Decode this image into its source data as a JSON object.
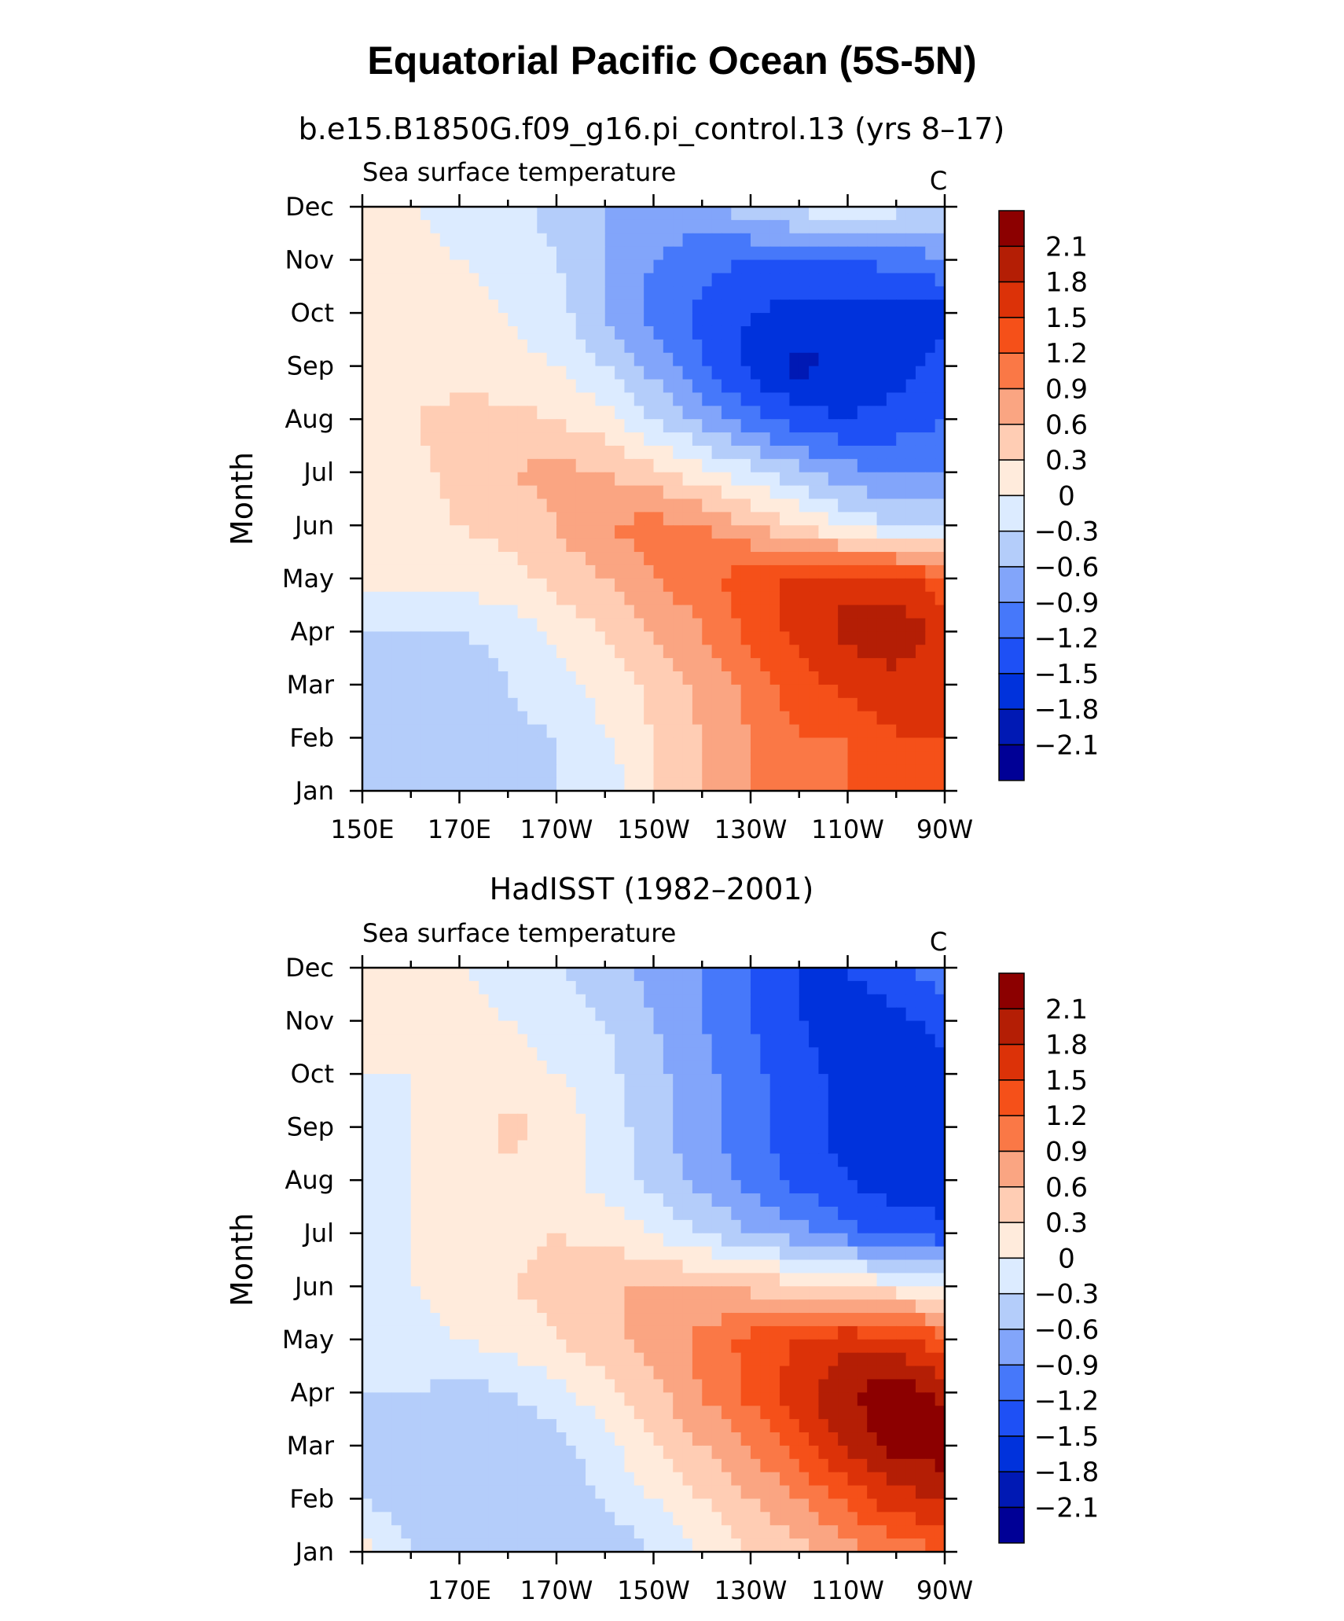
{
  "main_title": "Equatorial Pacific Ocean (5S-5N)",
  "chart_data": [
    {
      "type": "heatmap",
      "title": "b.e15.B1850G.f09_g16.pi_control.13 (yrs 8–17)",
      "variable": "Sea surface temperature",
      "units": "C",
      "ylabel": "Month",
      "xlim": [
        150,
        270
      ],
      "x_tick_values": [
        150,
        170,
        190,
        210,
        230,
        250,
        270
      ],
      "x_tick_labels": [
        "150E",
        "170E",
        "170W",
        "150W",
        "130W",
        "110W",
        "90W"
      ],
      "y_tick_labels": [
        "Jan",
        "Feb",
        "Mar",
        "Apr",
        "May",
        "Jun",
        "Jul",
        "Aug",
        "Sep",
        "Oct",
        "Nov",
        "Dec"
      ],
      "x": [
        150,
        160,
        170,
        180,
        190,
        200,
        210,
        220,
        230,
        240,
        250,
        260,
        270
      ],
      "values": [
        [
          -0.3,
          -0.6,
          -0.6,
          -0.6,
          -0.3,
          -0.3,
          0.3,
          0.6,
          0.9,
          1.0,
          1.2,
          1.2,
          1.2
        ],
        [
          -0.3,
          -0.6,
          -0.6,
          -0.4,
          -0.3,
          0.0,
          0.3,
          0.6,
          0.9,
          1.2,
          1.2,
          1.5,
          1.5
        ],
        [
          -0.3,
          -0.6,
          -0.6,
          -0.3,
          -0.1,
          0.1,
          0.4,
          0.7,
          1.0,
          1.4,
          1.6,
          1.7,
          1.6
        ],
        [
          -0.3,
          -0.3,
          -0.3,
          -0.2,
          0.1,
          0.3,
          0.6,
          0.9,
          1.3,
          1.6,
          1.9,
          2.0,
          1.7
        ],
        [
          0.1,
          0.1,
          0.1,
          0.2,
          0.4,
          0.6,
          0.9,
          1.1,
          1.4,
          1.6,
          1.7,
          1.6,
          1.3
        ],
        [
          0.1,
          0.2,
          0.3,
          0.4,
          0.6,
          0.9,
          1.0,
          0.9,
          0.6,
          0.3,
          -0.1,
          -0.3,
          -0.3
        ],
        [
          0.1,
          0.2,
          0.4,
          0.6,
          0.7,
          0.6,
          0.4,
          0.1,
          -0.2,
          -0.5,
          -0.8,
          -0.9,
          -0.9
        ],
        [
          0.0,
          0.3,
          0.4,
          0.4,
          0.3,
          0.1,
          -0.3,
          -0.7,
          -1.1,
          -1.4,
          -1.5,
          -1.4,
          -1.2
        ],
        [
          0.0,
          0.1,
          0.2,
          0.1,
          0.0,
          -0.3,
          -0.7,
          -1.2,
          -1.6,
          -1.9,
          -1.7,
          -1.6,
          -1.4
        ],
        [
          0.0,
          0.1,
          0.1,
          0.0,
          -0.2,
          -0.6,
          -1.0,
          -1.3,
          -1.5,
          -1.6,
          -1.6,
          -1.7,
          -1.6
        ],
        [
          0.1,
          0.1,
          0.0,
          -0.1,
          -0.3,
          -0.6,
          -0.9,
          -1.1,
          -1.2,
          -1.2,
          -1.2,
          -1.1,
          -0.9
        ],
        [
          0.1,
          0.0,
          -0.1,
          -0.2,
          -0.4,
          -0.6,
          -0.7,
          -0.7,
          -0.4,
          -0.2,
          0.0,
          -0.2,
          -0.4
        ]
      ]
    },
    {
      "type": "heatmap",
      "title": "HadISST (1982–2001)",
      "variable": "Sea surface temperature",
      "units": "C",
      "ylabel": "Month",
      "xlim": [
        150,
        270
      ],
      "x_tick_values": [
        170,
        190,
        210,
        230,
        250,
        270
      ],
      "x_tick_labels": [
        "170E",
        "170W",
        "150W",
        "130W",
        "110W",
        "90W"
      ],
      "y_tick_labels": [
        "Jan",
        "Feb",
        "Mar",
        "Apr",
        "May",
        "Jun",
        "Jul",
        "Aug",
        "Sep",
        "Oct",
        "Nov",
        "Dec"
      ],
      "x": [
        150,
        160,
        170,
        180,
        190,
        200,
        210,
        220,
        230,
        240,
        250,
        260,
        270
      ],
      "values": [
        [
          0.1,
          -0.3,
          -0.6,
          -0.6,
          -0.6,
          -0.5,
          -0.3,
          0.0,
          0.3,
          0.5,
          0.8,
          1.0,
          1.2
        ],
        [
          -0.3,
          -0.5,
          -0.6,
          -0.6,
          -0.5,
          -0.3,
          0.0,
          0.3,
          0.6,
          0.9,
          1.3,
          1.7,
          1.8
        ],
        [
          -0.3,
          -0.5,
          -0.6,
          -0.6,
          -0.4,
          -0.1,
          0.3,
          0.6,
          0.9,
          1.4,
          1.9,
          2.2,
          2.3
        ],
        [
          -0.3,
          -0.3,
          -0.4,
          -0.3,
          -0.1,
          0.2,
          0.5,
          0.9,
          1.3,
          1.7,
          2.1,
          2.3,
          2.0
        ],
        [
          -0.2,
          -0.1,
          0.0,
          0.1,
          0.3,
          0.5,
          0.7,
          1.0,
          1.3,
          1.5,
          1.7,
          1.6,
          1.3
        ],
        [
          -0.1,
          0.0,
          0.1,
          0.3,
          0.4,
          0.6,
          0.6,
          0.6,
          0.5,
          0.4,
          0.3,
          0.1,
          0.0
        ],
        [
          -0.1,
          0.0,
          0.1,
          0.2,
          0.3,
          0.2,
          0.0,
          -0.3,
          -0.6,
          -0.8,
          -1.1,
          -1.3,
          -1.4
        ],
        [
          -0.2,
          0.0,
          0.1,
          0.2,
          0.1,
          -0.1,
          -0.4,
          -0.7,
          -1.0,
          -1.3,
          -1.5,
          -1.7,
          -1.7
        ],
        [
          -0.1,
          0.0,
          0.1,
          0.4,
          0.2,
          -0.1,
          -0.5,
          -0.8,
          -1.1,
          -1.4,
          -1.6,
          -1.8,
          -1.7
        ],
        [
          0.0,
          0.0,
          0.1,
          0.1,
          0.0,
          -0.2,
          -0.5,
          -0.8,
          -1.1,
          -1.4,
          -1.6,
          -1.7,
          -1.6
        ],
        [
          0.0,
          0.1,
          0.1,
          0.0,
          -0.1,
          -0.3,
          -0.6,
          -0.9,
          -1.2,
          -1.5,
          -1.6,
          -1.6,
          -1.4
        ],
        [
          0.0,
          0.1,
          0.0,
          -0.1,
          -0.3,
          -0.5,
          -0.7,
          -0.9,
          -1.2,
          -1.5,
          -1.5,
          -1.3,
          -1.0
        ]
      ]
    }
  ],
  "colorbar": {
    "labels": [
      "2.1",
      "1.8",
      "1.5",
      "1.2",
      "0.9",
      "0.6",
      "0.3",
      "0",
      "−0.3",
      "−0.6",
      "−0.9",
      "−1.2",
      "−1.5",
      "−1.8",
      "−2.1"
    ],
    "levels": [
      -2.1,
      -1.8,
      -1.5,
      -1.2,
      -0.9,
      -0.6,
      -0.3,
      0,
      0.3,
      0.6,
      0.9,
      1.2,
      1.5,
      1.8,
      2.1
    ],
    "colors": [
      "#000096",
      "#0019B4",
      "#0032DC",
      "#1E50F5",
      "#4678FA",
      "#82A5FA",
      "#B4CDFA",
      "#DCEBFF",
      "#FFEBDC",
      "#FFCDB4",
      "#FAA582",
      "#FA7846",
      "#F55019",
      "#DC3208",
      "#B41E05",
      "#8C0000"
    ]
  }
}
